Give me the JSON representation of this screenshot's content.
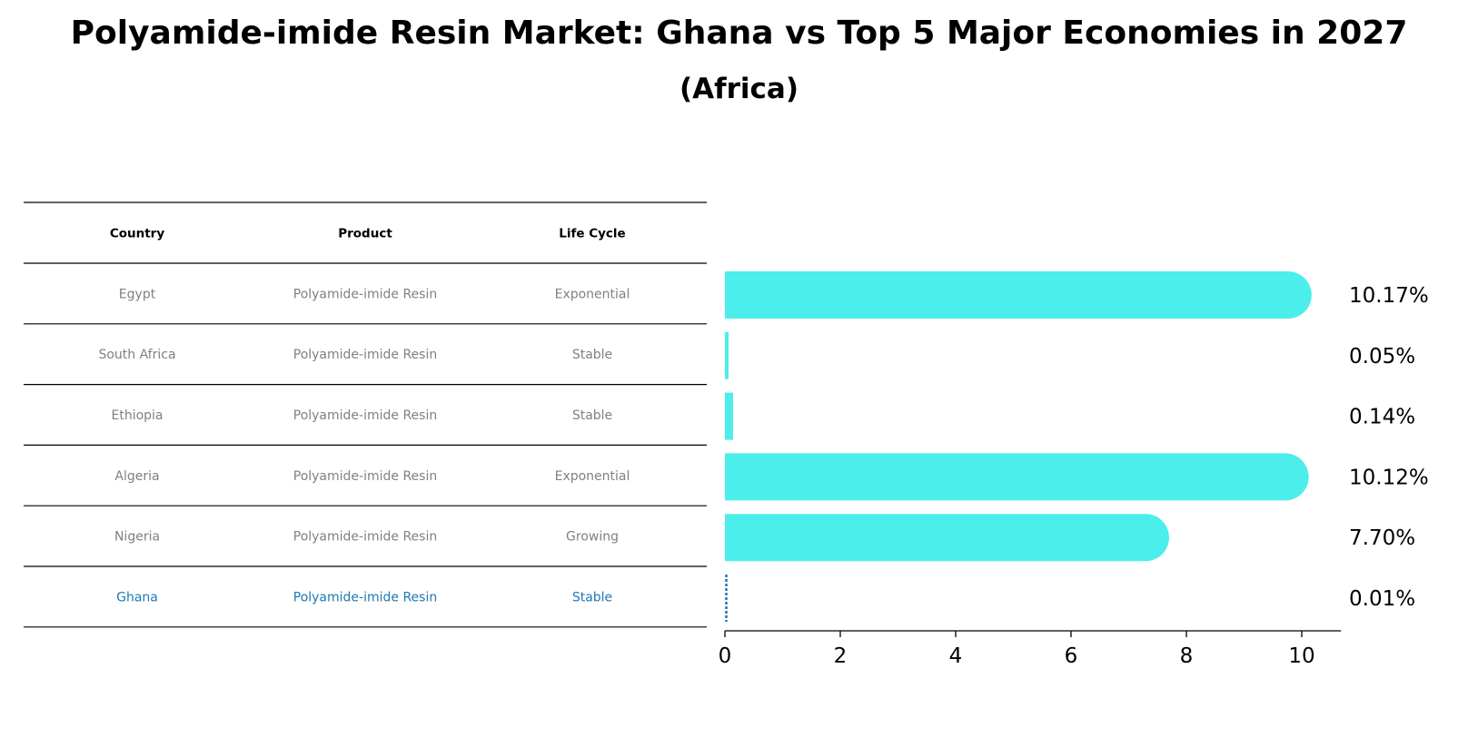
{
  "header": {
    "title": "Polyamide-imide Resin Market: Ghana vs Top 5 Major Economies in 2027",
    "subtitle": "(Africa)"
  },
  "table": {
    "columns": [
      "Country",
      "Product",
      "Life Cycle"
    ],
    "rows": [
      {
        "country": "Egypt",
        "product": "Polyamide-imide Resin",
        "life_cycle": "Exponential",
        "highlight": false
      },
      {
        "country": "South Africa",
        "product": "Polyamide-imide Resin",
        "life_cycle": "Stable",
        "highlight": false
      },
      {
        "country": "Ethiopia",
        "product": "Polyamide-imide Resin",
        "life_cycle": "Stable",
        "highlight": false
      },
      {
        "country": "Algeria",
        "product": "Polyamide-imide Resin",
        "life_cycle": "Exponential",
        "highlight": false
      },
      {
        "country": "Nigeria",
        "product": "Polyamide-imide Resin",
        "life_cycle": "Growing",
        "highlight": false
      },
      {
        "country": "Ghana",
        "product": "Polyamide-imide Resin",
        "life_cycle": "Stable",
        "highlight": true
      }
    ]
  },
  "colors": {
    "bar": "#4beeea",
    "highlight": "#1f77b4",
    "muted_text": "#808080"
  },
  "chart_data": {
    "type": "bar",
    "orientation": "horizontal",
    "title": "Polyamide-imide Resin Market: Ghana vs Top 5 Major Economies in 2027",
    "subtitle": "(Africa)",
    "categories": [
      "Egypt",
      "South Africa",
      "Ethiopia",
      "Algeria",
      "Nigeria",
      "Ghana"
    ],
    "values": [
      10.17,
      0.05,
      0.14,
      10.12,
      7.7,
      0.01
    ],
    "data_labels": [
      "10.17%",
      "0.05%",
      "0.14%",
      "10.12%",
      "7.70%",
      "0.01%"
    ],
    "xlim": [
      0,
      10.68
    ],
    "xticks": [
      0,
      2,
      4,
      6,
      8,
      10
    ],
    "xtick_labels": [
      "0",
      "2",
      "4",
      "6",
      "8",
      "10"
    ],
    "xlabel": "",
    "ylabel": "",
    "grid": false,
    "highlight_category": "Ghana"
  }
}
